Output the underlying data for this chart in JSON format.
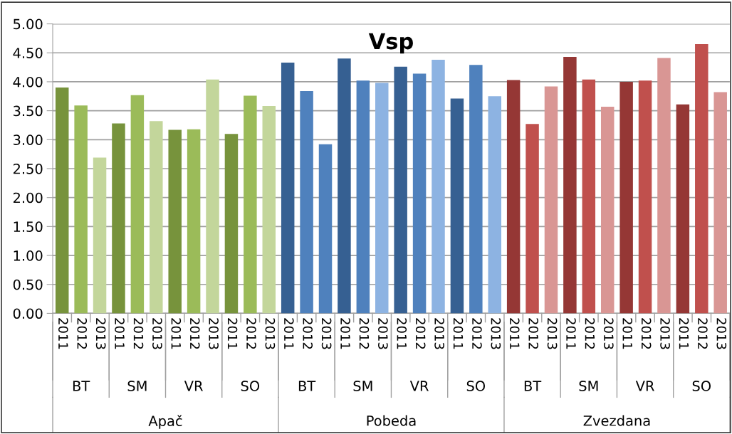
{
  "chart_data": {
    "type": "bar",
    "title": "Vsp",
    "categories": [
      "2011",
      "2012",
      "2013",
      "2011",
      "2012",
      "2013",
      "2011",
      "2012",
      "2013",
      "2011",
      "2012",
      "2013",
      "2011",
      "2012",
      "2013",
      "2011",
      "2012",
      "2013",
      "2011",
      "2012",
      "2013",
      "2011",
      "2012",
      "2013",
      "2011",
      "2012",
      "2013",
      "2011",
      "2012",
      "2013",
      "2011",
      "2012",
      "2013",
      "2011",
      "2012",
      "2013"
    ],
    "values": [
      3.9,
      3.59,
      2.69,
      3.28,
      3.77,
      3.32,
      3.17,
      3.18,
      4.04,
      3.1,
      3.76,
      3.58,
      4.33,
      3.84,
      2.92,
      4.4,
      4.02,
      3.98,
      4.26,
      4.14,
      4.38,
      3.71,
      4.29,
      3.75,
      4.03,
      3.27,
      3.92,
      4.43,
      4.04,
      3.57,
      4.0,
      4.02,
      4.41,
      3.61,
      4.65,
      3.82
    ],
    "colors": [
      "#77933c",
      "#9bbb59",
      "#c3d69b",
      "#77933c",
      "#9bbb59",
      "#c3d69b",
      "#77933c",
      "#9bbb59",
      "#c3d69b",
      "#77933c",
      "#9bbb59",
      "#c3d69b",
      "#366092",
      "#4f81bd",
      "#4f81bd",
      "#366092",
      "#4f81bd",
      "#8db3e2",
      "#366092",
      "#4f81bd",
      "#8db3e2",
      "#366092",
      "#4f81bd",
      "#8db3e2",
      "#953735",
      "#c0504d",
      "#d99694",
      "#953735",
      "#c0504d",
      "#d99694",
      "#953735",
      "#c0504d",
      "#d99694",
      "#953735",
      "#c0504d",
      "#d99694"
    ],
    "ylim": [
      0,
      5
    ],
    "yticks": [
      {
        "value": 0,
        "label": "0.00"
      },
      {
        "value": 0.5,
        "label": "0.50"
      },
      {
        "value": 1,
        "label": "1.00"
      },
      {
        "value": 1.5,
        "label": "1.50"
      },
      {
        "value": 2,
        "label": "2.00"
      },
      {
        "value": 2.5,
        "label": "2.50"
      },
      {
        "value": 3,
        "label": "3.00"
      },
      {
        "value": 3.5,
        "label": "3.50"
      },
      {
        "value": 4,
        "label": "4.00"
      },
      {
        "value": 4.5,
        "label": "4.50"
      },
      {
        "value": 5,
        "label": "5.00"
      }
    ],
    "grid": "y",
    "legend": false,
    "annotations": [
      "BT",
      "SM",
      "VR",
      "SO",
      "BT",
      "SM",
      "VR",
      "SO",
      "BT",
      "SM",
      "VR",
      "SO",
      "Apač",
      "Pobeda",
      "Zvezdana"
    ]
  }
}
